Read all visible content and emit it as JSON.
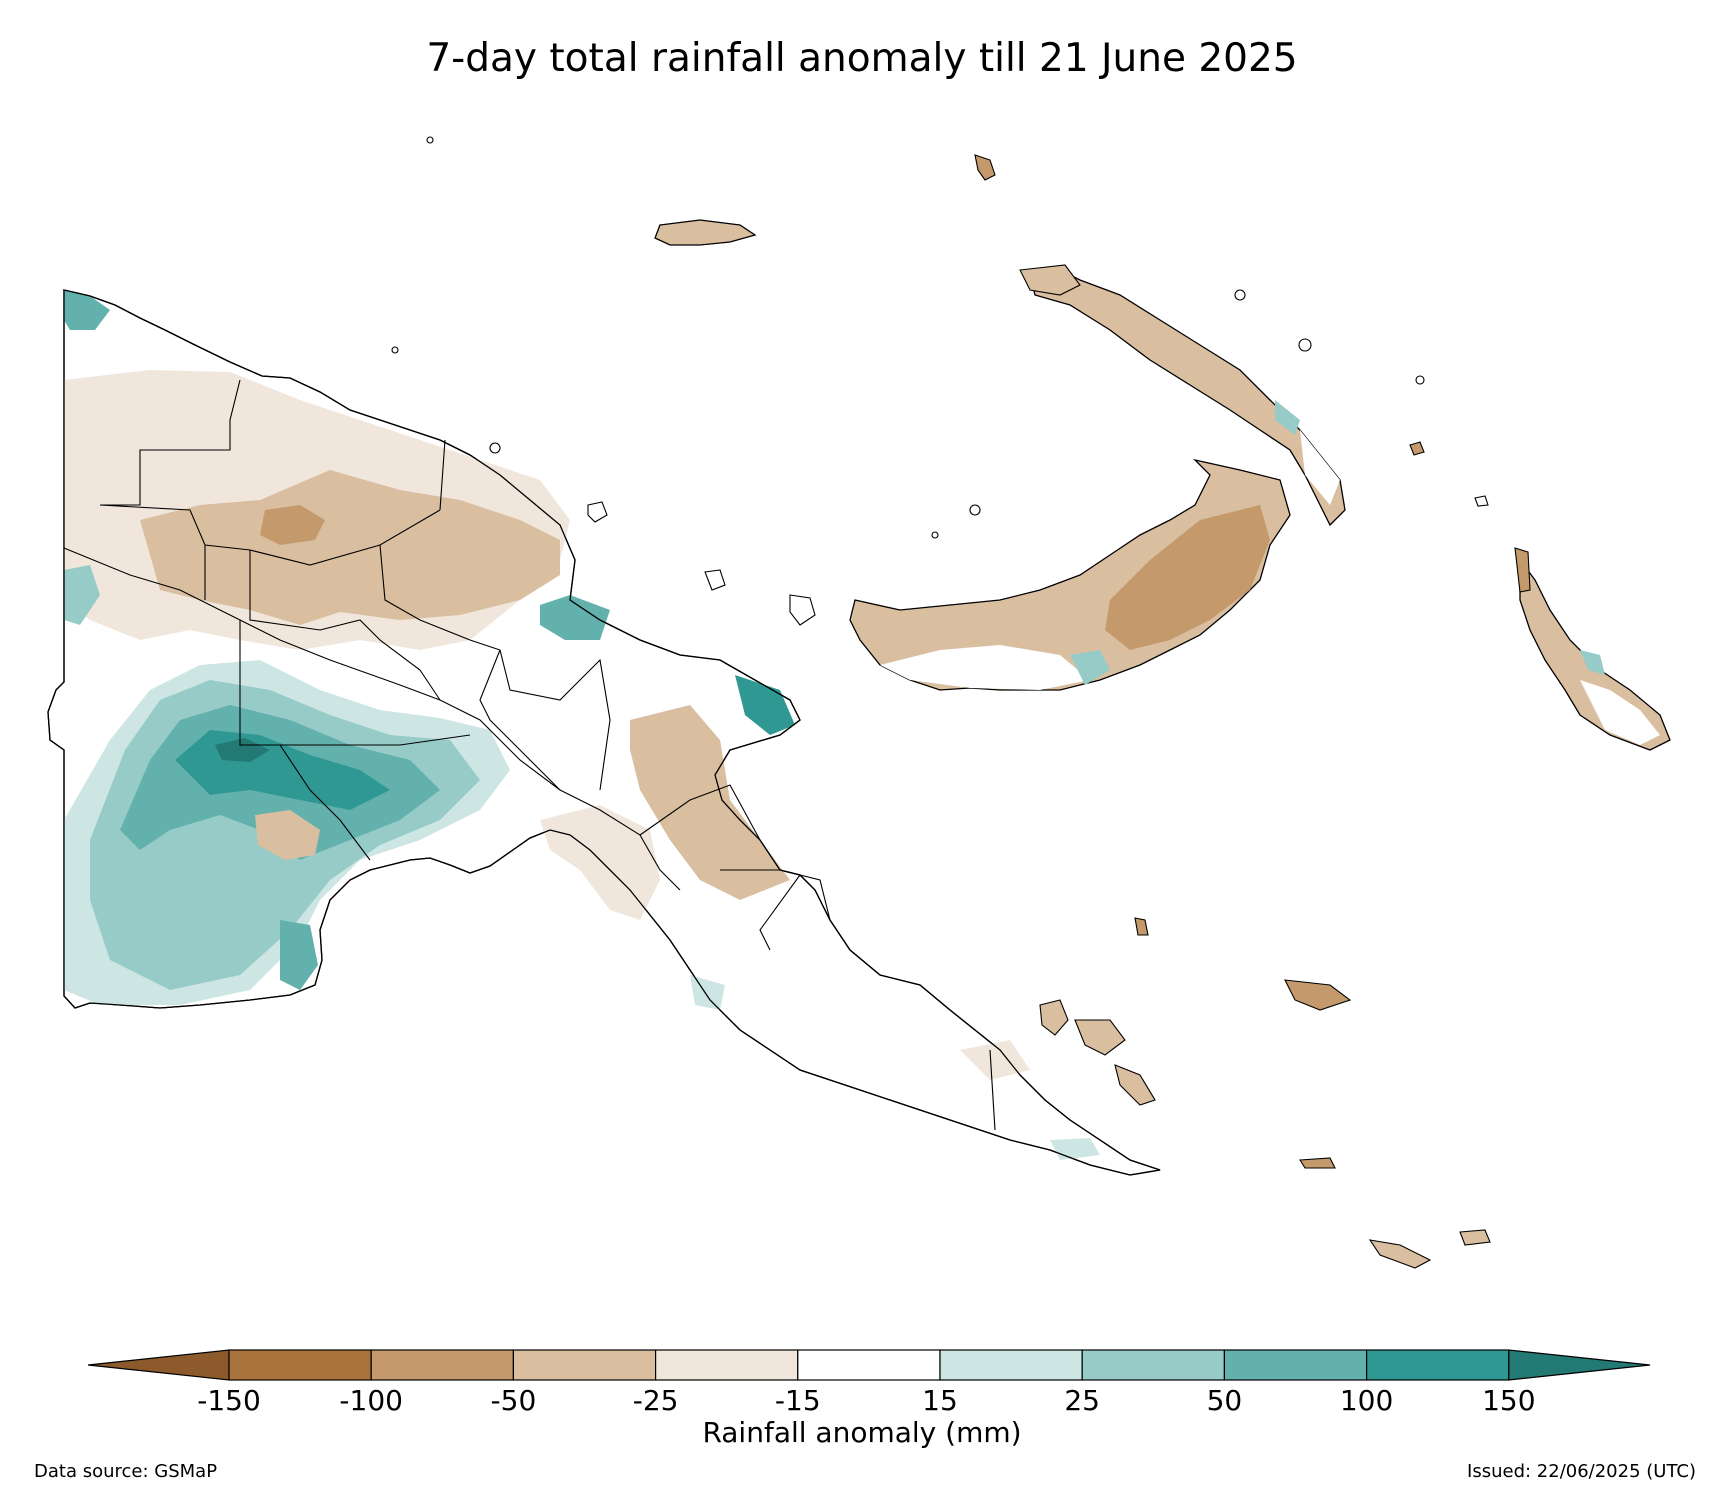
{
  "title": "7-day total rainfall anomaly till 21 June 2025",
  "colorbar": {
    "title": "Rainfall anomaly (mm)",
    "ticks": [
      "-150",
      "-100",
      "-50",
      "-25",
      "-15",
      "15",
      "25",
      "50",
      "100",
      "150"
    ],
    "bins": [
      {
        "range": "< -150",
        "color": "#8c5a2b"
      },
      {
        "range": "-150 to -100",
        "color": "#a9733d"
      },
      {
        "range": "-100 to -50",
        "color": "#c49a6c"
      },
      {
        "range": "-50 to -25",
        "color": "#d9bfa0"
      },
      {
        "range": "-25 to -15",
        "color": "#f0e6dc"
      },
      {
        "range": "-15 to 15",
        "color": "#ffffff"
      },
      {
        "range": "15 to 25",
        "color": "#cde6e4"
      },
      {
        "range": "25 to 50",
        "color": "#97cbc8"
      },
      {
        "range": "50 to 100",
        "color": "#63b1ad"
      },
      {
        "range": "100 to 150",
        "color": "#309892"
      },
      {
        "range": "> 150",
        "color": "#237973"
      }
    ]
  },
  "footer": {
    "source": "Data source: GSMaP",
    "issued": "Issued: 22/06/2025 (UTC)"
  }
}
